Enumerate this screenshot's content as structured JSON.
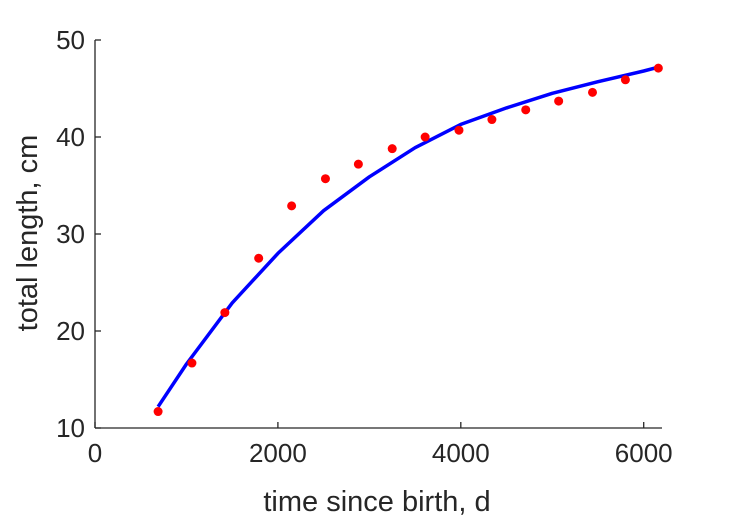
{
  "chart_data": {
    "type": "scatter",
    "xlabel": "time since birth, d",
    "ylabel": "total length, cm",
    "xlim": [
      0,
      6200
    ],
    "ylim": [
      10,
      50
    ],
    "xticks": [
      0,
      2000,
      4000,
      6000
    ],
    "yticks": [
      10,
      20,
      30,
      40,
      50
    ],
    "xtick_labels": [
      "0",
      "2000",
      "4000",
      "6000"
    ],
    "ytick_labels": [
      "10",
      "20",
      "30",
      "40",
      "50"
    ],
    "grid": false,
    "legend": "none",
    "series": [
      {
        "kind": "scatter",
        "color": "#ff0000",
        "x": [
          690,
          1060,
          1420,
          1790,
          2150,
          2520,
          2880,
          3250,
          3610,
          3980,
          4340,
          4710,
          5070,
          5440,
          5800,
          6160
        ],
        "y": [
          11.7,
          16.7,
          21.9,
          27.5,
          32.9,
          35.7,
          37.2,
          38.8,
          40.0,
          40.7,
          41.8,
          42.8,
          43.7,
          44.6,
          45.9,
          47.1
        ]
      },
      {
        "kind": "line",
        "color": "#0000ff",
        "x": [
          690,
          1000,
          1500,
          2000,
          2500,
          3000,
          3500,
          4000,
          4500,
          5000,
          5500,
          6000,
          6160
        ],
        "y": [
          12.2,
          16.6,
          22.9,
          28.0,
          32.4,
          35.9,
          38.9,
          41.3,
          43.0,
          44.5,
          45.7,
          46.8,
          47.2
        ]
      }
    ]
  }
}
